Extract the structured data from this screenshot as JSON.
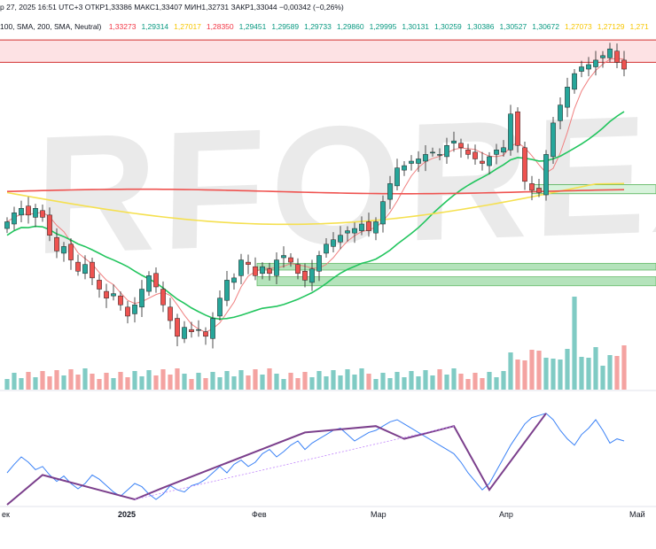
{
  "header": {
    "line1": "р 27, 2025 16:51 UTC+3",
    "ohlc": "ОТКР1,33386  МАКС1,33407  МИН1,32731  ЗАКР1,33044  −0,00342 (−0,26%)",
    "indicator_label": "100, SMA, 200, SMA, Neutral)",
    "levels": [
      {
        "text": "1,33273",
        "color": "#f23645"
      },
      {
        "text": "1,29314",
        "color": "#089981"
      },
      {
        "text": "1,27017",
        "color": "#f7c600"
      },
      {
        "text": "1,28350",
        "color": "#f23645"
      },
      {
        "text": "1,29451",
        "color": "#089981"
      },
      {
        "text": "1,29589",
        "color": "#089981"
      },
      {
        "text": "1,29733",
        "color": "#089981"
      },
      {
        "text": "1,29860",
        "color": "#089981"
      },
      {
        "text": "1,29995",
        "color": "#089981"
      },
      {
        "text": "1,30131",
        "color": "#089981"
      },
      {
        "text": "1,30259",
        "color": "#089981"
      },
      {
        "text": "1,30386",
        "color": "#089981"
      },
      {
        "text": "1,30527",
        "color": "#089981"
      },
      {
        "text": "1,30672",
        "color": "#089981"
      },
      {
        "text": "1,27073",
        "color": "#f7c600"
      },
      {
        "text": "1,27129",
        "color": "#f7c600"
      },
      {
        "text": "1,271",
        "color": "#f7c600"
      }
    ]
  },
  "watermark": "RFOREX.c",
  "xaxis": {
    "labels": [
      "ек",
      "2025",
      "Фев",
      "Мар",
      "Апр",
      "Май"
    ]
  },
  "colors": {
    "up": "#26a69a",
    "down": "#ef5350",
    "sma_green": "#22c55e",
    "sma_yellow": "#f5e050",
    "sma_red": "#ef5350",
    "stoch": "#3b82f6",
    "zigzag": "#7b3f8c",
    "zone_fill": "#a7dfb0"
  },
  "chart_data": {
    "type": "candlestick",
    "title": "",
    "xlabel": "",
    "ylabel": "",
    "closes": [
      1.262,
      1.266,
      1.268,
      1.265,
      1.268,
      1.264,
      1.256,
      1.249,
      1.251,
      1.245,
      1.24,
      1.243,
      1.237,
      1.232,
      1.228,
      1.23,
      1.225,
      1.22,
      1.225,
      1.232,
      1.238,
      1.233,
      1.225,
      1.218,
      1.211,
      1.215,
      1.213,
      1.214,
      1.211,
      1.219,
      1.228,
      1.236,
      1.237,
      1.245,
      1.243,
      1.238,
      1.242,
      1.239,
      1.245,
      1.247,
      1.244,
      1.239,
      1.236,
      1.241,
      1.247,
      1.252,
      1.254,
      1.256,
      1.258,
      1.259,
      1.261,
      1.258,
      1.262,
      1.271,
      1.279,
      1.286,
      1.287,
      1.289,
      1.29,
      1.292,
      1.293,
      1.292,
      1.296,
      1.298,
      1.295,
      1.292,
      1.29,
      1.288,
      1.291,
      1.294,
      1.295,
      1.31,
      1.296,
      1.28,
      1.276,
      1.275,
      1.292,
      1.306,
      1.314,
      1.322,
      1.328,
      1.331,
      1.332,
      1.334,
      1.336,
      1.339,
      1.333,
      1.33
    ],
    "stochastic": [
      30,
      38,
      45,
      40,
      33,
      36,
      28,
      22,
      27,
      20,
      15,
      20,
      28,
      24,
      18,
      12,
      8,
      14,
      20,
      17,
      10,
      5,
      10,
      18,
      14,
      12,
      18,
      20,
      24,
      30,
      36,
      30,
      38,
      42,
      36,
      40,
      48,
      52,
      45,
      50,
      56,
      60,
      52,
      58,
      62,
      66,
      70,
      72,
      66,
      60,
      64,
      68,
      70,
      74,
      78,
      80,
      76,
      72,
      68,
      64,
      60,
      56,
      52,
      48,
      40,
      30,
      22,
      14,
      20,
      32,
      44,
      56,
      66,
      76,
      82,
      84,
      86,
      80,
      70,
      62,
      56,
      66,
      72,
      80,
      70,
      58,
      62,
      60
    ],
    "stochastic_range": [
      0,
      100
    ],
    "ylim": [
      1.205,
      1.345
    ]
  }
}
